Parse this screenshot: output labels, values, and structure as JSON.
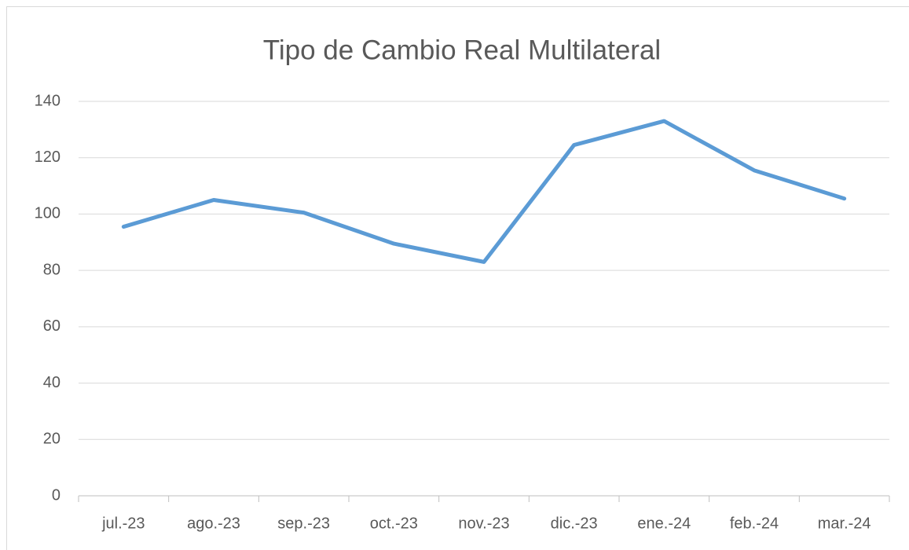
{
  "chart_data": {
    "type": "line",
    "title": "Tipo de Cambio Real Multilateral",
    "categories": [
      "jul.-23",
      "ago.-23",
      "sep.-23",
      "oct.-23",
      "nov.-23",
      "dic.-23",
      "ene.-24",
      "feb.-24",
      "mar.-24"
    ],
    "series": [
      {
        "name": "Tipo de Cambio Real Multilateral",
        "color": "#5b9bd5",
        "values": [
          95.5,
          105,
          100.5,
          89.5,
          83,
          124.5,
          133,
          115.5,
          105.5
        ]
      }
    ],
    "ylim": [
      0,
      140
    ],
    "yticks": [
      0,
      20,
      40,
      60,
      80,
      100,
      120,
      140
    ],
    "grid": true
  }
}
